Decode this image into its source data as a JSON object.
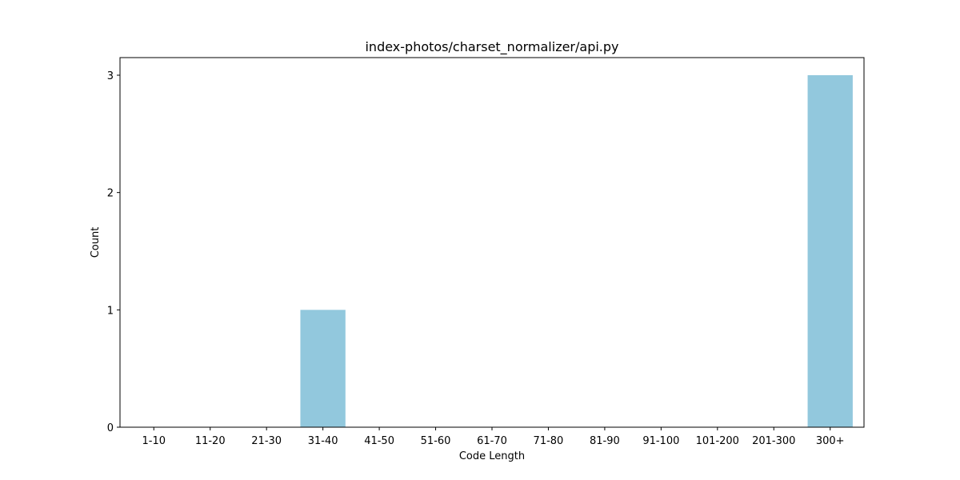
{
  "chart_data": {
    "type": "bar",
    "title": "index-photos/charset_normalizer/api.py",
    "xlabel": "Code Length",
    "ylabel": "Count",
    "categories": [
      "1-10",
      "11-20",
      "21-30",
      "31-40",
      "41-50",
      "51-60",
      "61-70",
      "71-80",
      "81-90",
      "91-100",
      "101-200",
      "201-300",
      "300+"
    ],
    "values": [
      0,
      0,
      0,
      1,
      0,
      0,
      0,
      0,
      0,
      0,
      0,
      0,
      3
    ],
    "ylim": [
      0,
      3.15
    ],
    "yticks": [
      0,
      1,
      2,
      3
    ],
    "bar_color": "#92c8dd",
    "grid": false,
    "legend": false
  }
}
